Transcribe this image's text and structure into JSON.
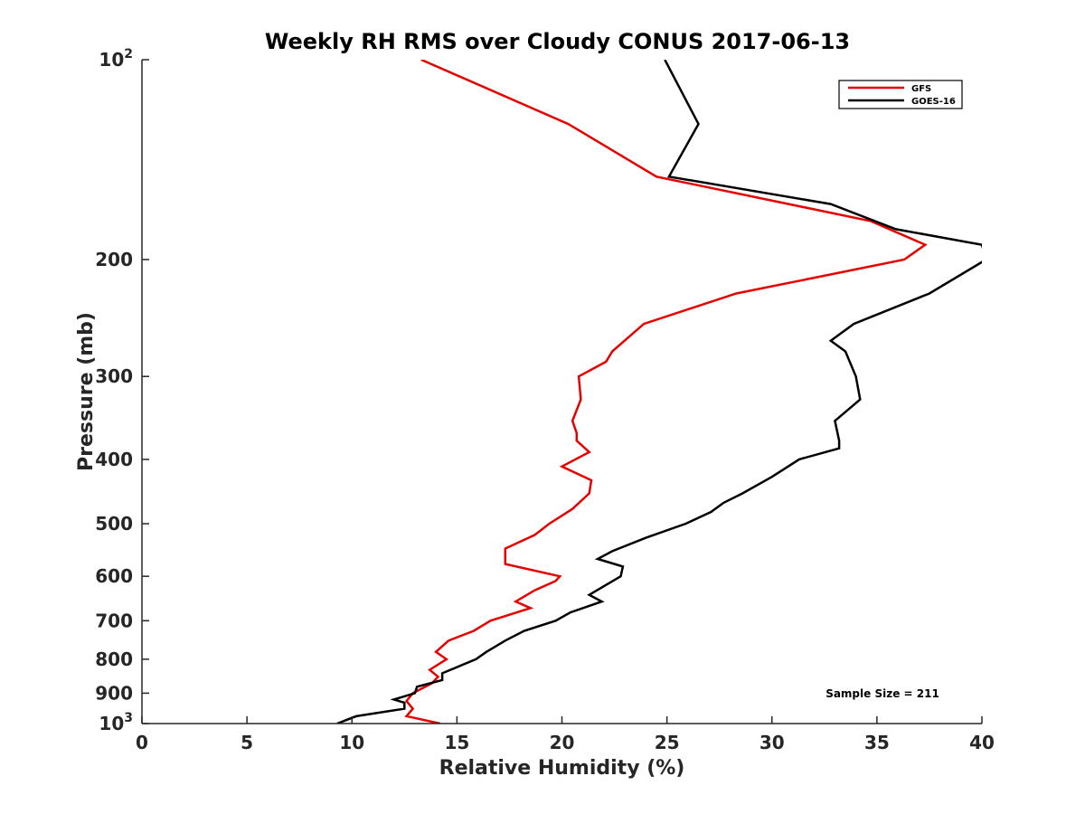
{
  "chart_data": {
    "type": "line",
    "title": "Weekly RH RMS over Cloudy CONUS 2017-06-13",
    "xlabel": "Relative Humidity (%)",
    "ylabel": "Pressure (mb)",
    "xlim": [
      0,
      40
    ],
    "ylim": [
      100,
      1000
    ],
    "yscale": "log",
    "yreversed": true,
    "xticks": [
      0,
      5,
      10,
      15,
      20,
      25,
      30,
      35,
      40
    ],
    "yticks": [
      {
        "value": 100,
        "base": "10",
        "exp": "2"
      },
      {
        "value": 200,
        "label": "200"
      },
      {
        "value": 300,
        "label": "300"
      },
      {
        "value": 400,
        "label": "400"
      },
      {
        "value": 500,
        "label": "500"
      },
      {
        "value": 600,
        "label": "600"
      },
      {
        "value": 700,
        "label": "700"
      },
      {
        "value": 800,
        "label": "800"
      },
      {
        "value": 900,
        "label": "900"
      },
      {
        "value": 1000,
        "base": "10",
        "exp": "3"
      }
    ],
    "legend_position": "top-right",
    "annotation": "Sample Size = 211",
    "series": [
      {
        "name": "GFS",
        "color": "#e60000",
        "points": [
          [
            13.3,
            100
          ],
          [
            20.3,
            125
          ],
          [
            24.5,
            150
          ],
          [
            34.7,
            175
          ],
          [
            37.3,
            190
          ],
          [
            36.3,
            200
          ],
          [
            28.3,
            225
          ],
          [
            23.9,
            250
          ],
          [
            22.4,
            275
          ],
          [
            22.1,
            285
          ],
          [
            20.8,
            300
          ],
          [
            20.9,
            325
          ],
          [
            20.5,
            350
          ],
          [
            20.7,
            365
          ],
          [
            20.7,
            375
          ],
          [
            21.3,
            390
          ],
          [
            20.0,
            410
          ],
          [
            21.4,
            430
          ],
          [
            21.3,
            450
          ],
          [
            20.5,
            475
          ],
          [
            19.4,
            500
          ],
          [
            18.7,
            520
          ],
          [
            17.3,
            545
          ],
          [
            17.3,
            575
          ],
          [
            19.9,
            600
          ],
          [
            19.7,
            610
          ],
          [
            18.7,
            630
          ],
          [
            17.8,
            655
          ],
          [
            18.5,
            670
          ],
          [
            16.6,
            700
          ],
          [
            15.8,
            725
          ],
          [
            14.6,
            750
          ],
          [
            14.0,
            780
          ],
          [
            14.5,
            800
          ],
          [
            13.7,
            830
          ],
          [
            14.1,
            850
          ],
          [
            13.8,
            870
          ],
          [
            12.9,
            900
          ],
          [
            12.6,
            925
          ],
          [
            12.9,
            950
          ],
          [
            12.6,
            975
          ],
          [
            14.2,
            1000
          ]
        ]
      },
      {
        "name": "GOES-16",
        "color": "#000000",
        "points": [
          [
            24.9,
            100
          ],
          [
            26.5,
            125
          ],
          [
            25.1,
            150
          ],
          [
            32.8,
            165
          ],
          [
            35.9,
            180
          ],
          [
            40.0,
            190
          ],
          [
            40.2,
            200
          ],
          [
            37.5,
            225
          ],
          [
            33.9,
            250
          ],
          [
            32.8,
            265
          ],
          [
            33.5,
            275
          ],
          [
            34.0,
            300
          ],
          [
            34.2,
            325
          ],
          [
            33.0,
            350
          ],
          [
            33.2,
            375
          ],
          [
            33.2,
            385
          ],
          [
            31.3,
            400
          ],
          [
            30.0,
            425
          ],
          [
            28.6,
            450
          ],
          [
            27.7,
            465
          ],
          [
            27.1,
            480
          ],
          [
            25.9,
            500
          ],
          [
            24.0,
            525
          ],
          [
            22.4,
            550
          ],
          [
            21.7,
            565
          ],
          [
            22.9,
            580
          ],
          [
            22.8,
            600
          ],
          [
            21.3,
            640
          ],
          [
            21.9,
            655
          ],
          [
            20.4,
            680
          ],
          [
            19.7,
            700
          ],
          [
            18.2,
            725
          ],
          [
            17.3,
            750
          ],
          [
            16.4,
            780
          ],
          [
            15.9,
            800
          ],
          [
            14.3,
            840
          ],
          [
            14.3,
            860
          ],
          [
            13.1,
            880
          ],
          [
            13.0,
            900
          ],
          [
            12.0,
            920
          ],
          [
            12.5,
            930
          ],
          [
            12.5,
            950
          ],
          [
            10.2,
            975
          ],
          [
            9.3,
            1000
          ]
        ]
      }
    ]
  }
}
